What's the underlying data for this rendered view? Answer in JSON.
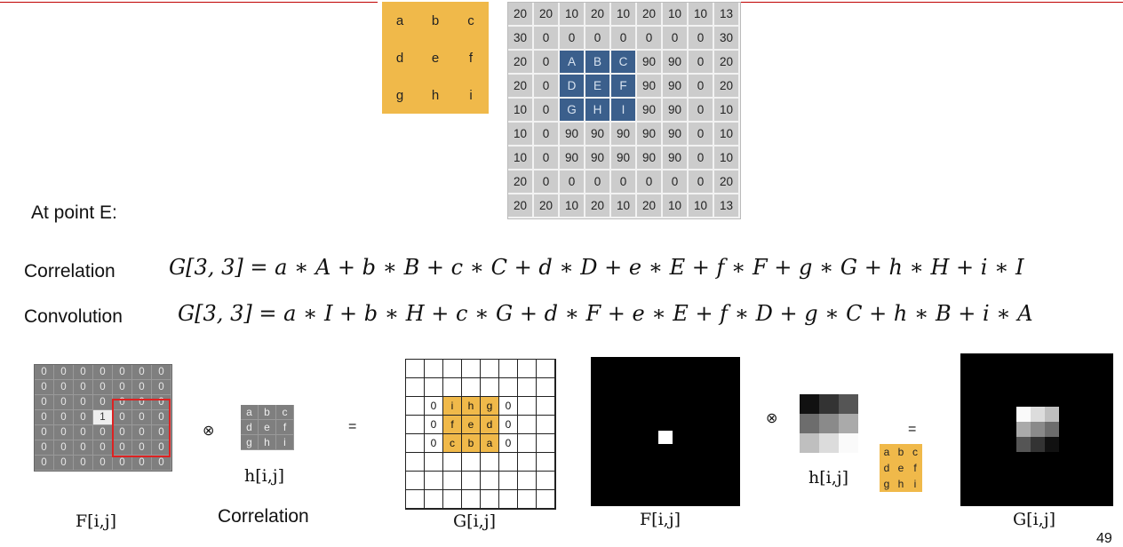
{
  "kernel_top": [
    [
      "a",
      "b",
      "c"
    ],
    [
      "d",
      "e",
      "f"
    ],
    [
      "g",
      "h",
      "i"
    ]
  ],
  "image_top": [
    [
      "20",
      "20",
      "10",
      "20",
      "10",
      "20",
      "10",
      "10",
      "13"
    ],
    [
      "30",
      "0",
      "0",
      "0",
      "0",
      "0",
      "0",
      "0",
      "30"
    ],
    [
      "20",
      "0",
      "A",
      "B",
      "C",
      "90",
      "90",
      "0",
      "20"
    ],
    [
      "20",
      "0",
      "D",
      "E",
      "F",
      "90",
      "90",
      "0",
      "20"
    ],
    [
      "10",
      "0",
      "G",
      "H",
      "I",
      "90",
      "90",
      "0",
      "10"
    ],
    [
      "10",
      "0",
      "90",
      "90",
      "90",
      "90",
      "90",
      "0",
      "10"
    ],
    [
      "10",
      "0",
      "90",
      "90",
      "90",
      "90",
      "90",
      "0",
      "10"
    ],
    [
      "20",
      "0",
      "0",
      "0",
      "0",
      "0",
      "0",
      "0",
      "20"
    ],
    [
      "20",
      "20",
      "10",
      "20",
      "10",
      "20",
      "10",
      "10",
      "13"
    ]
  ],
  "at_point": "At point E:",
  "correlation": {
    "label": "Correlation",
    "equation": "G[3, 3] = a ∗ A + b ∗ B + c ∗ C + d ∗ D + e ∗ E + f ∗ F + g ∗ G + h ∗ H + i ∗ I"
  },
  "convolution": {
    "label": "Convolution",
    "equation": "G[3, 3] = a ∗ I + b ∗ H + c ∗ G + d ∗ F + e ∗ E + f ∗ D + g ∗ C + h ∗ B + i ∗ A"
  },
  "bottom": {
    "F_grid": [
      [
        "0",
        "0",
        "0",
        "0",
        "0",
        "0",
        "0"
      ],
      [
        "0",
        "0",
        "0",
        "0",
        "0",
        "0",
        "0"
      ],
      [
        "0",
        "0",
        "0",
        "0",
        "0",
        "0",
        "0"
      ],
      [
        "0",
        "0",
        "0",
        "1",
        "0",
        "0",
        "0"
      ],
      [
        "0",
        "0",
        "0",
        "0",
        "0",
        "0",
        "0"
      ],
      [
        "0",
        "0",
        "0",
        "0",
        "0",
        "0",
        "0"
      ],
      [
        "0",
        "0",
        "0",
        "0",
        "0",
        "0",
        "0"
      ]
    ],
    "otimes": "⊗",
    "equals": "=",
    "h_grid": [
      [
        "a",
        "b",
        "c"
      ],
      [
        "d",
        "e",
        "f"
      ],
      [
        "g",
        "h",
        "i"
      ]
    ],
    "h_label": "h[i,j]",
    "F_label": "F[i,j]",
    "correlation_label": "Correlation",
    "G_grid_rows": [
      [
        "",
        "",
        "",
        "",
        "",
        "",
        "",
        ""
      ],
      [
        "",
        "",
        "",
        "",
        "",
        "",
        "",
        ""
      ],
      [
        "",
        "0",
        "i",
        "h",
        "g",
        "0",
        "",
        ""
      ],
      [
        "",
        "0",
        "f",
        "e",
        "d",
        "0",
        "",
        ""
      ],
      [
        "",
        "0",
        "c",
        "b",
        "a",
        "0",
        "",
        ""
      ],
      [
        "",
        "",
        "",
        "",
        "",
        "",
        "",
        ""
      ],
      [
        "",
        "",
        "",
        "",
        "",
        "",
        "",
        ""
      ],
      [
        "",
        "",
        "",
        "",
        "",
        "",
        "",
        ""
      ]
    ],
    "G_label": "G[i,j]",
    "right_h_label": "h[i,j]",
    "right_F_label": "F[i,j]",
    "right_G_label": "G[i,j]",
    "small_kernel": [
      [
        "a",
        "b",
        "c"
      ],
      [
        "d",
        "e",
        "f"
      ],
      [
        "g",
        "h",
        "i"
      ]
    ],
    "page_number": "49"
  }
}
